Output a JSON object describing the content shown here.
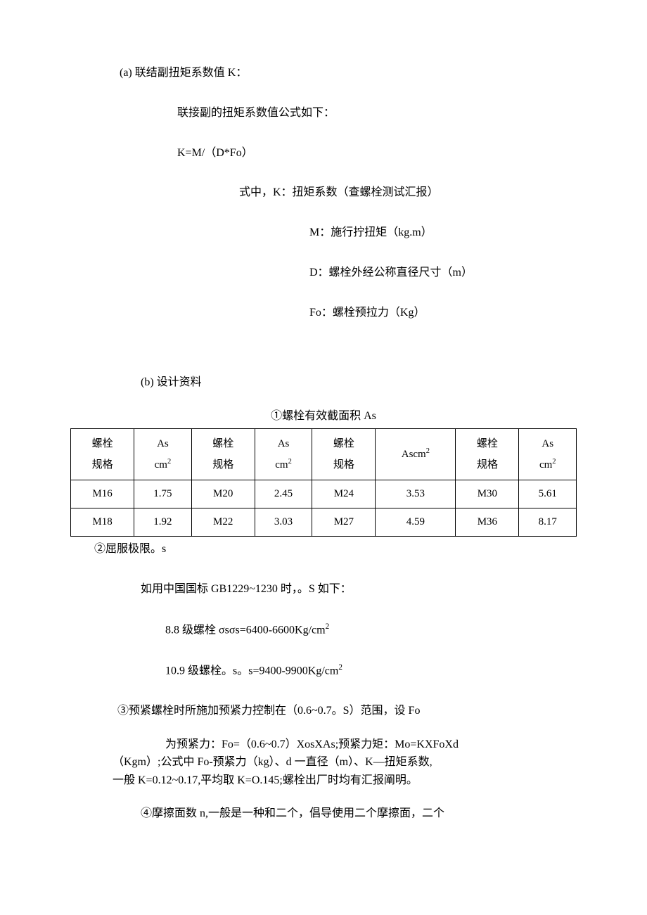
{
  "section_a": {
    "title": "(a)  联结副扭矩系数值 K：",
    "formula_desc": "联接副的扭矩系数值公式如下：",
    "formula": "K=M/（D*Fo）",
    "where_label": "式中，K：扭矩系数（查螺栓测试汇报）",
    "defs": {
      "m": "M：施行拧扭矩（kg.m）",
      "d": "D：螺栓外经公称直径尺寸（m）",
      "fo": "Fo：螺栓预拉力（Kg）"
    }
  },
  "section_b": {
    "title": "(b)  设计资料",
    "table": {
      "caption": "①螺栓有效截面积 As",
      "headers": {
        "spec": "螺栓规格",
        "as_cm2_html": "As<br>cm<sup>2</sup>",
        "as_cm2_nobr_html": "Ascm<sup>2</sup>"
      },
      "rows": [
        [
          "M16",
          "1.75",
          "M20",
          "2.45",
          "M24",
          "3.53",
          "M30",
          "5.61"
        ],
        [
          "M18",
          "1.92",
          "M22",
          "3.03",
          "M27",
          "4.59",
          "M36",
          "8.17"
        ]
      ]
    },
    "item2_label": "②屈服极限。s",
    "item2_text": "如用中国国标 GB1229~1230 时，。S 如下：",
    "bolt88_html": "8.8 级螺栓 σsσs=6400-6600Kg/cm<sup>2</sup>",
    "bolt109_html": "10.9 级螺栓。s。s=9400-9900Kg/cm<sup>2</sup>",
    "item3": "③预紧螺栓时所施加预紧力控制在（0.6~0.7。S）范围，设 Fo",
    "formula_block": {
      "line1": "为预紧力：Fo=（0.6~0.7）XosXAs;预紧力矩：Mo=KXFoXd",
      "line2": "（Kgm）;公式中 Fo-预紧力（kg）、d 一直径（m）、K—扭矩系数,",
      "line3": "一般 K=0.12~0.17,平均取 K=O.145;螺栓出厂时均有汇报阐明。"
    },
    "item4": "④摩擦面数 n,一般是一种和二个，倡导使用二个摩擦面，二个"
  }
}
